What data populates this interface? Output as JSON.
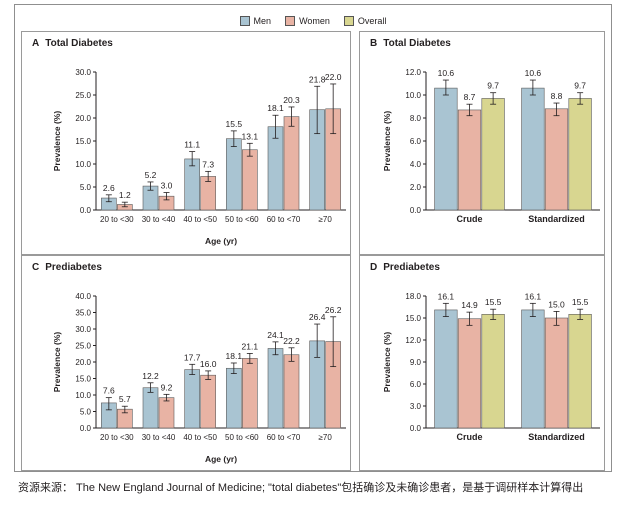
{
  "legend": {
    "entries": [
      {
        "label": "Men",
        "color": "#a9c4d2"
      },
      {
        "label": "Women",
        "color": "#e8b3a4"
      },
      {
        "label": "Overall",
        "color": "#d8d690"
      }
    ]
  },
  "source_note": "资源来源： The New England Journal of Medicine; \"total diabetes\"包括确诊及未确诊患者，是基于调研样本计算得出",
  "chart_data": [
    {
      "id": "A",
      "type": "bar",
      "letter": "A",
      "title": "Total Diabetes",
      "xlabel": "Age (yr)",
      "ylabel": "Prevalence (%)",
      "ylim": [
        0,
        30
      ],
      "yticks": [
        "0.0",
        "5.0",
        "10.0",
        "15.0",
        "20.0",
        "25.0",
        "30.0"
      ],
      "categories": [
        "20 to <30",
        "30 to <40",
        "40 to <50",
        "50 to <60",
        "60 to <70",
        "≥70"
      ],
      "series": [
        {
          "name": "Men",
          "color": "#a9c4d2",
          "values": [
            2.6,
            5.2,
            11.1,
            15.5,
            18.1,
            21.8
          ],
          "err_low": [
            1.8,
            4.3,
            9.6,
            13.8,
            15.6,
            16.6
          ],
          "err_high": [
            3.3,
            6.1,
            12.7,
            17.2,
            20.6,
            26.9
          ],
          "labels": [
            "2.6",
            "5.2",
            "11.1",
            "15.5",
            "18.1",
            "21.8"
          ]
        },
        {
          "name": "Women",
          "color": "#e8b3a4",
          "values": [
            1.2,
            3.0,
            7.3,
            13.1,
            20.3,
            22.0
          ],
          "err_low": [
            0.7,
            2.2,
            6.2,
            11.7,
            18.2,
            16.6
          ],
          "err_high": [
            1.7,
            3.8,
            8.4,
            14.5,
            22.4,
            27.4
          ],
          "labels": [
            "1.2",
            "3.0",
            "7.3",
            "13.1",
            "20.3",
            "22.0"
          ]
        }
      ]
    },
    {
      "id": "B",
      "type": "bar",
      "letter": "B",
      "title": "Total Diabetes",
      "xlabel": "",
      "ylabel": "Prevalence (%)",
      "ylim": [
        0,
        12
      ],
      "yticks": [
        "0.0",
        "2.0",
        "4.0",
        "6.0",
        "8.0",
        "10.0",
        "12.0"
      ],
      "categories": [
        "Crude",
        "Standardized"
      ],
      "series": [
        {
          "name": "Men",
          "color": "#a9c4d2",
          "values": [
            10.6,
            10.6
          ],
          "err_low": [
            10.0,
            10.0
          ],
          "err_high": [
            11.3,
            11.3
          ],
          "labels": [
            "10.6",
            "10.6"
          ]
        },
        {
          "name": "Women",
          "color": "#e8b3a4",
          "values": [
            8.7,
            8.8
          ],
          "err_low": [
            8.2,
            8.2
          ],
          "err_high": [
            9.2,
            9.3
          ],
          "labels": [
            "8.7",
            "8.8"
          ]
        },
        {
          "name": "Overall",
          "color": "#d8d690",
          "values": [
            9.7,
            9.7
          ],
          "err_low": [
            9.2,
            9.2
          ],
          "err_high": [
            10.2,
            10.2
          ],
          "labels": [
            "9.7",
            "9.7"
          ]
        }
      ]
    },
    {
      "id": "C",
      "type": "bar",
      "letter": "C",
      "title": "Prediabetes",
      "xlabel": "Age (yr)",
      "ylabel": "Prevalence (%)",
      "ylim": [
        0,
        40
      ],
      "yticks": [
        "0.0",
        "5.0",
        "10.0",
        "15.0",
        "20.0",
        "25.0",
        "30.0",
        "35.0",
        "40.0"
      ],
      "categories": [
        "20 to <30",
        "30 to <40",
        "40 to <50",
        "50 to <60",
        "60 to <70",
        "≥70"
      ],
      "series": [
        {
          "name": "Men",
          "color": "#a9c4d2",
          "values": [
            7.6,
            12.2,
            17.7,
            18.1,
            24.1,
            26.4
          ],
          "err_low": [
            5.5,
            10.8,
            16.2,
            16.5,
            22.2,
            21.4
          ],
          "err_high": [
            9.2,
            13.7,
            19.3,
            19.7,
            26.1,
            31.5
          ],
          "labels": [
            "7.6",
            "12.2",
            "17.7",
            "18.1",
            "24.1",
            "26.4"
          ]
        },
        {
          "name": "Women",
          "color": "#e8b3a4",
          "values": [
            5.7,
            9.2,
            16.0,
            21.1,
            22.2,
            26.2
          ],
          "err_low": [
            4.6,
            8.2,
            14.7,
            19.6,
            20.2,
            18.6
          ],
          "err_high": [
            6.6,
            10.2,
            17.3,
            22.6,
            24.3,
            33.7
          ],
          "labels": [
            "5.7",
            "9.2",
            "16.0",
            "21.1",
            "22.2",
            "26.2"
          ]
        }
      ]
    },
    {
      "id": "D",
      "type": "bar",
      "letter": "D",
      "title": "Prediabetes",
      "xlabel": "",
      "ylabel": "Prevalence (%)",
      "ylim": [
        0,
        18
      ],
      "yticks": [
        "0.0",
        "3.0",
        "6.0",
        "9.0",
        "12.0",
        "15.0",
        "18.0"
      ],
      "categories": [
        "Crude",
        "Standardized"
      ],
      "series": [
        {
          "name": "Men",
          "color": "#a9c4d2",
          "values": [
            16.1,
            16.1
          ],
          "err_low": [
            15.2,
            15.2
          ],
          "err_high": [
            17.0,
            17.0
          ],
          "labels": [
            "16.1",
            "16.1"
          ]
        },
        {
          "name": "Women",
          "color": "#e8b3a4",
          "values": [
            14.9,
            15.0
          ],
          "err_low": [
            14.0,
            14.0
          ],
          "err_high": [
            15.8,
            15.9
          ],
          "labels": [
            "14.9",
            "15.0"
          ]
        },
        {
          "name": "Overall",
          "color": "#d8d690",
          "values": [
            15.5,
            15.5
          ],
          "err_low": [
            14.8,
            14.8
          ],
          "err_high": [
            16.2,
            16.2
          ],
          "labels": [
            "15.5",
            "15.5"
          ]
        }
      ]
    }
  ]
}
